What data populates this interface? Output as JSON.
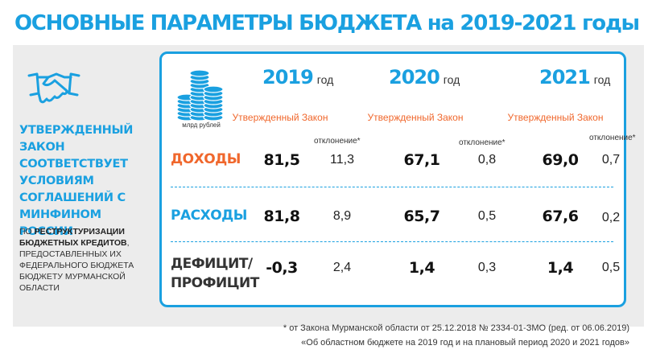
{
  "title": "ОСНОВНЫЕ ПАРАМЕТРЫ БЮДЖЕТА на 2019-2021 годы",
  "left": {
    "bold_text": "УТВЕРЖДЕННЫЙ ЗАКОН СООТВЕТСТВУЕТ УСЛОВИЯМ СОГЛАШЕНИЙ С МИНФИНОМ РОССИИ",
    "small_1": "ПО ",
    "small_bold": "РЕСТРУКТУРИЗАЦИИ БЮДЖЕТНЫХ КРЕДИТОВ",
    "small_2": ", ПРЕДОСТАВЛЕННЫХ ИХ ФЕДЕРАЛЬНОГО БЮДЖЕТА БЮДЖЕТУ МУРМАНСКОЙ ОБЛАСТИ"
  },
  "unit": "млрд рублей",
  "years": [
    {
      "year": "2019",
      "suffix": "год",
      "approved": "Утвержденный Закон",
      "deviation": "отклонение*"
    },
    {
      "year": "2020",
      "suffix": "год",
      "approved": "Утвержденный Закон",
      "deviation": "отклонение*"
    },
    {
      "year": "2021",
      "suffix": "год",
      "approved": "Утвержденный Закон",
      "deviation": "отклонение*"
    }
  ],
  "rows": [
    {
      "label": "ДОХОДЫ",
      "label_color": "#f0672c",
      "values": [
        "81,5",
        "67,1",
        "69,0"
      ],
      "deviations": [
        "11,3",
        "0,8",
        "0,7"
      ]
    },
    {
      "label": "РАСХОДЫ",
      "label_color": "#1aa0e0",
      "values": [
        "81,8",
        "65,7",
        "67,6"
      ],
      "deviations": [
        "8,9",
        "0,5",
        "0,2"
      ]
    },
    {
      "label_line1": "ДЕФИЦИТ/",
      "label_line2": "ПРОФИЦИТ",
      "label_color": "#333333",
      "values": [
        "-0,3",
        "1,4",
        "1,4"
      ],
      "deviations": [
        "2,4",
        "0,3",
        "0,5"
      ]
    }
  ],
  "footnote_1": "* от Закона Мурманской области от 25.12.2018 № 2334-01-ЗМО (ред. от 06.06.2019)",
  "footnote_2": "«Об областном бюджете на 2019 год и на плановый период 2020 и 2021 годов»",
  "colors": {
    "accent": "#1aa0e0",
    "orange": "#f0672c",
    "panel": "#ececec"
  }
}
